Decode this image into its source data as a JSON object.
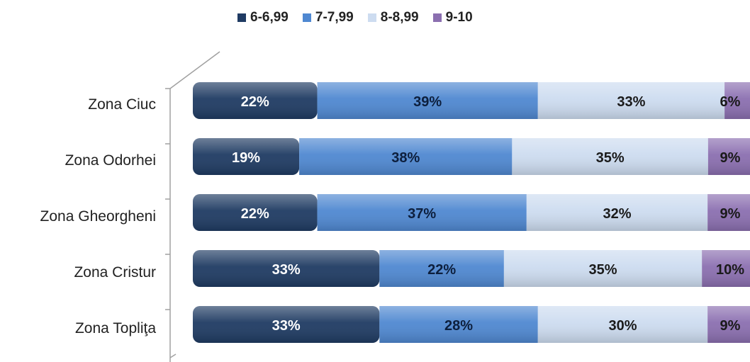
{
  "chart_data": {
    "type": "bar",
    "orientation": "horizontal",
    "stacked": true,
    "percent_stacked": true,
    "categories": [
      "Zona Ciuc",
      "Zona Odorhei",
      "Zona Gheorgheni",
      "Zona Cristur",
      "Zona Topliţa"
    ],
    "series": [
      {
        "name": "6-6,99",
        "color": "#1f3b63",
        "values": [
          22,
          19,
          22,
          33,
          33
        ],
        "labels": [
          "22%",
          "19%",
          "22%",
          "33%",
          "33%"
        ]
      },
      {
        "name": "7-7,99",
        "color": "#4f88d1",
        "values": [
          39,
          38,
          37,
          22,
          28
        ],
        "labels": [
          "39%",
          "38%",
          "37%",
          "22%",
          "28%"
        ]
      },
      {
        "name": "8-8,99",
        "color": "#cddcf0",
        "values": [
          33,
          35,
          32,
          35,
          30
        ],
        "labels": [
          "33%",
          "35%",
          "32%",
          "35%",
          "30%"
        ]
      },
      {
        "name": "9-10",
        "color": "#8b6fb0",
        "values": [
          6,
          9,
          9,
          10,
          9
        ],
        "labels": [
          "6%",
          "9%",
          "9%",
          "10%",
          "9%"
        ]
      }
    ],
    "legend_position": "top",
    "grid": false,
    "title": "",
    "xlabel": "",
    "ylabel": ""
  }
}
